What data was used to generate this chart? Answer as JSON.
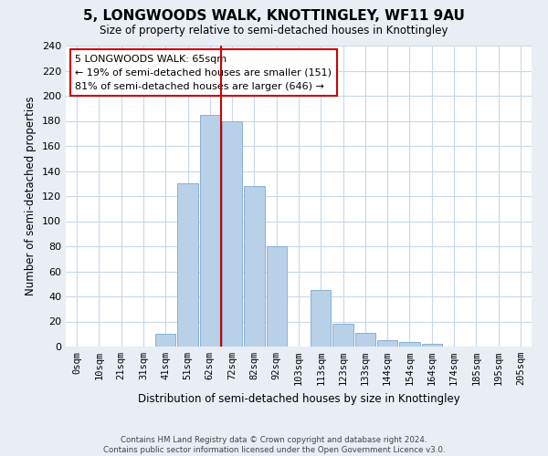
{
  "title": "5, LONGWOODS WALK, KNOTTINGLEY, WF11 9AU",
  "subtitle": "Size of property relative to semi-detached houses in Knottingley",
  "xlabel": "Distribution of semi-detached houses by size in Knottingley",
  "ylabel": "Number of semi-detached properties",
  "bar_labels": [
    "0sqm",
    "10sqm",
    "21sqm",
    "31sqm",
    "41sqm",
    "51sqm",
    "62sqm",
    "72sqm",
    "82sqm",
    "92sqm",
    "103sqm",
    "113sqm",
    "123sqm",
    "133sqm",
    "144sqm",
    "154sqm",
    "164sqm",
    "174sqm",
    "185sqm",
    "195sqm",
    "205sqm"
  ],
  "bar_values": [
    0,
    0,
    0,
    0,
    10,
    130,
    185,
    180,
    128,
    80,
    0,
    45,
    18,
    11,
    5,
    4,
    2,
    0,
    0,
    0,
    0
  ],
  "bar_color": "#b8d0e8",
  "bar_edge_color": "#8ab0d0",
  "annotation_line1": "5 LONGWOODS WALK: 65sqm",
  "annotation_line2": "← 19% of semi-detached houses are smaller (151)",
  "annotation_line3": "81% of semi-detached houses are larger (646) →",
  "vline_color": "#cc0000",
  "grid_color": "#c8d8e8",
  "ylim": [
    0,
    240
  ],
  "yticks": [
    0,
    20,
    40,
    60,
    80,
    100,
    120,
    140,
    160,
    180,
    200,
    220,
    240
  ],
  "footer_line1": "Contains HM Land Registry data © Crown copyright and database right 2024.",
  "footer_line2": "Contains public sector information licensed under the Open Government Licence v3.0.",
  "bg_color": "#e8eef4",
  "plot_bg_color": "#ffffff"
}
